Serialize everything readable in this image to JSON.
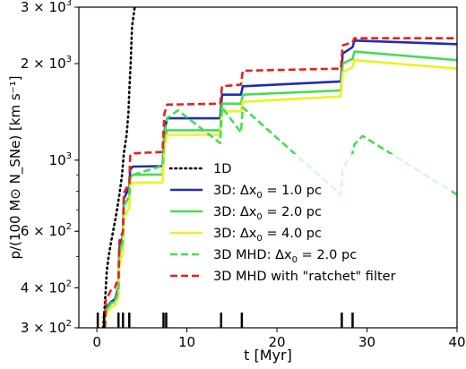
{
  "chart_data": {
    "type": "line",
    "xlabel": "t [Myr]",
    "ylabel": "p/(100 M⊙ N_SNe) [km s⁻¹]",
    "xlim": [
      -2,
      40
    ],
    "ylim": [
      300,
      3000
    ],
    "y_scale": "log",
    "x_ticks": [
      0,
      10,
      20,
      30,
      40
    ],
    "x_tick_labels": [
      "0",
      "10",
      "20",
      "30",
      "40"
    ],
    "y_ticks": [
      300,
      400,
      600,
      1000,
      2000,
      3000
    ],
    "y_tick_labels": [
      {
        "m": "3",
        "e": "2"
      },
      {
        "m": "4",
        "e": "2"
      },
      {
        "m": "6",
        "e": "2"
      },
      {
        "m": "",
        "e": "3"
      },
      {
        "m": "2",
        "e": "3"
      },
      {
        "m": "3",
        "e": "3"
      }
    ],
    "grid": false,
    "legend_position": "lower-right",
    "legend": [
      {
        "label": "1D",
        "color": "#000000",
        "dash": "dotted"
      },
      {
        "label_parts": [
          "3D: Δx",
          "0",
          " = 1.0 pc"
        ],
        "color": "#1f2db4",
        "dash": "solid"
      },
      {
        "label_parts": [
          "3D: Δx",
          "0",
          " = 2.0 pc"
        ],
        "color": "#44dd55",
        "dash": "solid"
      },
      {
        "label_parts": [
          "3D: Δx",
          "0",
          " = 4.0 pc"
        ],
        "color": "#f0f020",
        "dash": "solid"
      },
      {
        "label_parts": [
          "3D MHD: Δx",
          "0",
          " = 2.0 pc"
        ],
        "color": "#44dd55",
        "dash": "dashed"
      },
      {
        "label": "3D MHD with \"ratchet\" filter",
        "color": "#e8201c",
        "dash": "dashed"
      }
    ],
    "sn_times": [
      0.1,
      0.8,
      2.4,
      2.9,
      3.6,
      7.4,
      7.7,
      13.8,
      16.1,
      27.2,
      28.4
    ],
    "series": [
      {
        "name": "1D",
        "color": "#000000",
        "dash": "dotted",
        "points": [
          [
            0.7,
            300
          ],
          [
            0.85,
            340
          ],
          [
            1.0,
            400
          ],
          [
            1.1,
            450
          ],
          [
            1.3,
            500
          ],
          [
            1.6,
            560
          ],
          [
            1.9,
            620
          ],
          [
            2.2,
            690
          ],
          [
            2.5,
            780
          ],
          [
            2.8,
            900
          ],
          [
            3.0,
            1050
          ],
          [
            3.3,
            1200
          ],
          [
            3.5,
            1400
          ],
          [
            3.6,
            1650
          ],
          [
            3.75,
            2000
          ],
          [
            3.9,
            2600
          ],
          [
            4.2,
            3000
          ]
        ]
      },
      {
        "name": "3D: Δx0 = 1.0 pc",
        "color": "#1f2db4",
        "dash": "solid",
        "points": [
          [
            0.9,
            300
          ],
          [
            1.0,
            345
          ],
          [
            1.6,
            362
          ],
          [
            2.0,
            368
          ],
          [
            2.4,
            400
          ],
          [
            2.5,
            530
          ],
          [
            2.9,
            580
          ],
          [
            3.0,
            760
          ],
          [
            3.6,
            820
          ],
          [
            3.7,
            935
          ],
          [
            4.0,
            955
          ],
          [
            7.3,
            958
          ],
          [
            7.5,
            1230
          ],
          [
            7.8,
            1350
          ],
          [
            13.7,
            1350
          ],
          [
            13.9,
            1600
          ],
          [
            16.0,
            1600
          ],
          [
            16.2,
            1700
          ],
          [
            27.1,
            1760
          ],
          [
            27.3,
            2150
          ],
          [
            28.4,
            2250
          ],
          [
            28.6,
            2360
          ],
          [
            40,
            2300
          ]
        ]
      },
      {
        "name": "3D: Δx0 = 2.0 pc",
        "color": "#44dd55",
        "dash": "solid",
        "points": [
          [
            0.9,
            300
          ],
          [
            1.0,
            340
          ],
          [
            1.6,
            358
          ],
          [
            2.0,
            362
          ],
          [
            2.4,
            390
          ],
          [
            2.5,
            510
          ],
          [
            2.9,
            560
          ],
          [
            3.0,
            720
          ],
          [
            3.6,
            770
          ],
          [
            3.7,
            880
          ],
          [
            4.0,
            900
          ],
          [
            7.3,
            902
          ],
          [
            7.5,
            1160
          ],
          [
            7.8,
            1240
          ],
          [
            13.7,
            1240
          ],
          [
            13.9,
            1500
          ],
          [
            16.0,
            1500
          ],
          [
            16.2,
            1600
          ],
          [
            27.1,
            1650
          ],
          [
            27.3,
            2000
          ],
          [
            28.4,
            2070
          ],
          [
            28.6,
            2180
          ],
          [
            40,
            2050
          ]
        ]
      },
      {
        "name": "3D: Δx0 = 4.0 pc",
        "color": "#f0f020",
        "dash": "solid",
        "points": [
          [
            0.9,
            300
          ],
          [
            1.0,
            330
          ],
          [
            1.6,
            348
          ],
          [
            2.0,
            352
          ],
          [
            2.4,
            375
          ],
          [
            2.5,
            470
          ],
          [
            2.9,
            520
          ],
          [
            3.0,
            660
          ],
          [
            3.6,
            710
          ],
          [
            3.7,
            830
          ],
          [
            4.0,
            850
          ],
          [
            7.3,
            852
          ],
          [
            7.5,
            1100
          ],
          [
            7.8,
            1200
          ],
          [
            13.7,
            1200
          ],
          [
            13.9,
            1420
          ],
          [
            16.0,
            1420
          ],
          [
            16.2,
            1520
          ],
          [
            27.1,
            1580
          ],
          [
            27.3,
            1880
          ],
          [
            28.4,
            1950
          ],
          [
            28.6,
            2050
          ],
          [
            40,
            1930
          ]
        ]
      },
      {
        "name": "3D MHD: Δx0 = 2.0 pc",
        "color": "#44dd55",
        "dash": "dashed",
        "points": [
          [
            0.9,
            300
          ],
          [
            1.0,
            340
          ],
          [
            1.6,
            358
          ],
          [
            2.0,
            362
          ],
          [
            2.4,
            390
          ],
          [
            2.5,
            510
          ],
          [
            2.9,
            560
          ],
          [
            3.0,
            720
          ],
          [
            3.6,
            770
          ],
          [
            3.7,
            880
          ],
          [
            4.0,
            900
          ],
          [
            7.3,
            960
          ],
          [
            7.5,
            1200
          ],
          [
            7.8,
            1350
          ],
          [
            9.0,
            1430
          ],
          [
            13.7,
            1130
          ],
          [
            13.9,
            1460
          ],
          [
            16.0,
            1220
          ],
          [
            16.2,
            1460
          ],
          [
            27.1,
            780
          ],
          [
            27.3,
            940
          ],
          [
            28.4,
            1050
          ],
          [
            28.6,
            1120
          ],
          [
            29.5,
            1190
          ],
          [
            40,
            780
          ]
        ]
      },
      {
        "name": "3D MHD with \"ratchet\" filter",
        "color": "#e8201c",
        "dash": "dashed",
        "points": [
          [
            0.9,
            300
          ],
          [
            1.0,
            365
          ],
          [
            1.6,
            395
          ],
          [
            2.0,
            400
          ],
          [
            2.4,
            430
          ],
          [
            2.5,
            560
          ],
          [
            2.9,
            600
          ],
          [
            3.0,
            790
          ],
          [
            3.6,
            850
          ],
          [
            3.7,
            1030
          ],
          [
            4.0,
            1050
          ],
          [
            7.3,
            1060
          ],
          [
            7.5,
            1400
          ],
          [
            7.8,
            1490
          ],
          [
            13.7,
            1500
          ],
          [
            13.9,
            1700
          ],
          [
            16.0,
            1720
          ],
          [
            16.2,
            1900
          ],
          [
            27.1,
            1930
          ],
          [
            27.3,
            2280
          ],
          [
            28.4,
            2330
          ],
          [
            28.6,
            2400
          ],
          [
            40,
            2400
          ]
        ]
      }
    ]
  }
}
